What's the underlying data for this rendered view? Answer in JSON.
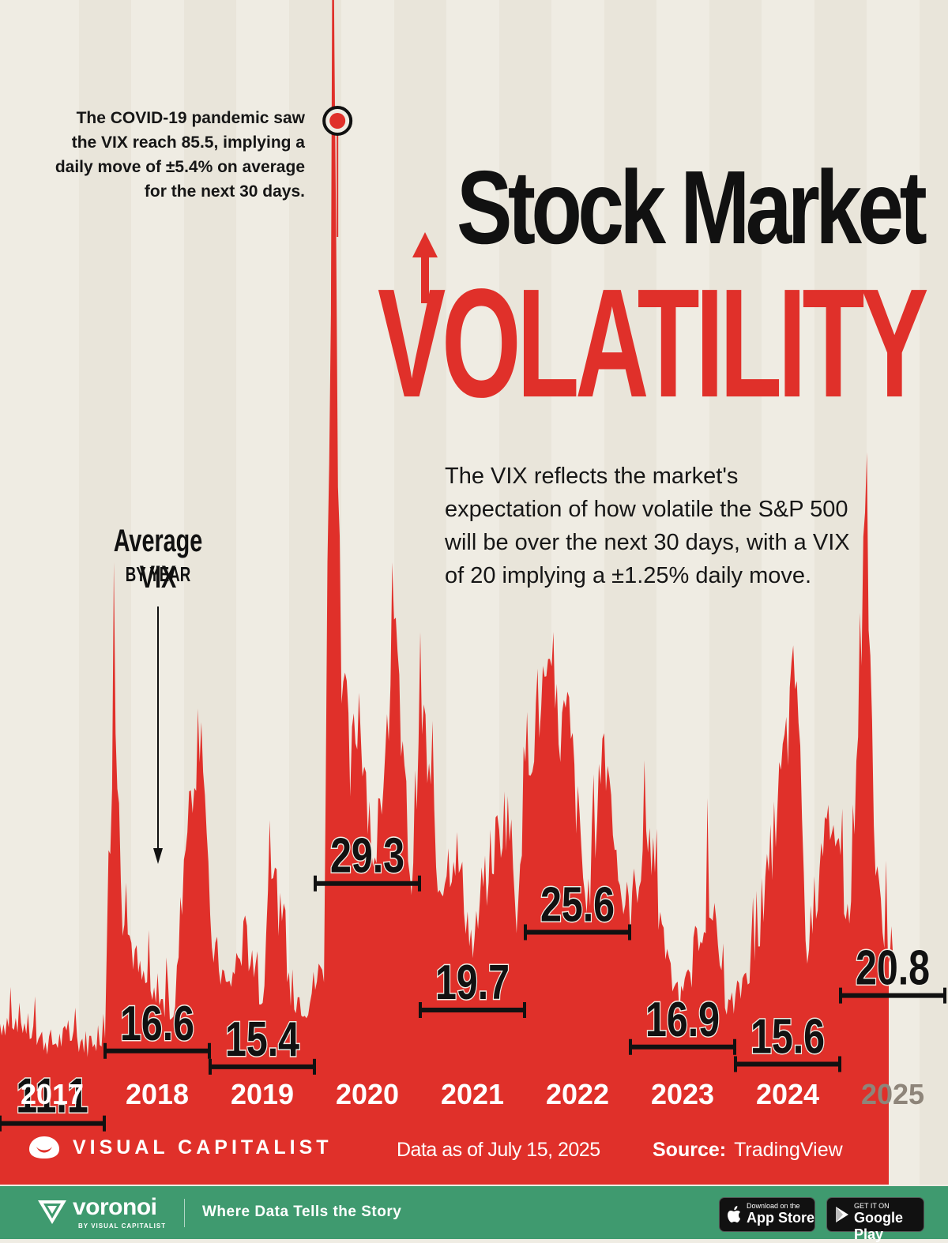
{
  "title": {
    "line1": "Stock Market",
    "line2": "VOLATILITY"
  },
  "annotation_covid": "The COVID-19 pandemic saw the VIX reach 85.5, implying a daily move of ±5.4% on average for the next 30 days.",
  "explanation": "The VIX reflects the market's expectation of how volatile the S&P 500 will be over the next 30 days, with a VIX of 20 implying a ±1.25% daily move.",
  "legend": {
    "title": "Average VIX",
    "subtitle": "BY YEAR"
  },
  "footer": {
    "brand": "VISUAL CAPITALIST",
    "date": "Data as of July 15, 2025",
    "source_label": "Source:",
    "source_value": "TradingView"
  },
  "bottom_bar": {
    "app_name": "voronoi",
    "app_by": "BY VISUAL CAPITALIST",
    "tagline": "Where Data Tells the Story",
    "appstore_small": "Download on the",
    "appstore_big": "App Store",
    "googleplay_small": "GET IT ON",
    "googleplay_big": "Google Play"
  },
  "colors": {
    "background": "#efece3",
    "area": "#e0302a",
    "text": "#111111",
    "footer_bar": "#3f9a6f"
  },
  "chart_data": {
    "type": "area",
    "title": "Stock Market Volatility",
    "xlabel": "",
    "ylabel": "",
    "ylim": [
      0,
      90
    ],
    "categories": [
      "2017",
      "2018",
      "2019",
      "2020",
      "2021",
      "2022",
      "2023",
      "2024",
      "2025"
    ],
    "series": [
      {
        "name": "Average VIX",
        "values": [
          11.1,
          16.6,
          15.4,
          29.3,
          19.7,
          25.6,
          16.9,
          15.6,
          20.8
        ],
        "labels": [
          "11.1",
          "16.6",
          "15.4",
          "29.3",
          "19.7",
          "25.6",
          "16.9",
          "15.6",
          "20.8"
        ]
      }
    ],
    "approx_daily_vix": [
      [
        "2017-01",
        11.5
      ],
      [
        "2017-03",
        12.0
      ],
      [
        "2017-05",
        10.5
      ],
      [
        "2017-07",
        10.0
      ],
      [
        "2017-09",
        10.5
      ],
      [
        "2017-11",
        10.0
      ],
      [
        "2018-01",
        11.0
      ],
      [
        "2018-02",
        37.3
      ],
      [
        "2018-03",
        20.0
      ],
      [
        "2018-05",
        15.0
      ],
      [
        "2018-07",
        13.0
      ],
      [
        "2018-09",
        12.5
      ],
      [
        "2018-10",
        24.0
      ],
      [
        "2018-12",
        36.1
      ],
      [
        "2019-01",
        18.0
      ],
      [
        "2019-03",
        14.0
      ],
      [
        "2019-05",
        18.0
      ],
      [
        "2019-07",
        13.0
      ],
      [
        "2019-08",
        24.6
      ],
      [
        "2019-10",
        14.0
      ],
      [
        "2019-12",
        13.0
      ],
      [
        "2020-02",
        16.0
      ],
      [
        "2020-03",
        85.5
      ],
      [
        "2020-04",
        40.0
      ],
      [
        "2020-05",
        30.0
      ],
      [
        "2020-06",
        36.0
      ],
      [
        "2020-08",
        22.0
      ],
      [
        "2020-09",
        33.0
      ],
      [
        "2020-10",
        40.3
      ],
      [
        "2020-12",
        22.0
      ],
      [
        "2021-01",
        37.2
      ],
      [
        "2021-03",
        22.0
      ],
      [
        "2021-05",
        25.0
      ],
      [
        "2021-07",
        17.0
      ],
      [
        "2021-09",
        24.0
      ],
      [
        "2021-11",
        28.0
      ],
      [
        "2021-12",
        20.0
      ],
      [
        "2022-01",
        32.0
      ],
      [
        "2022-03",
        36.5
      ],
      [
        "2022-05",
        34.0
      ],
      [
        "2022-06",
        34.0
      ],
      [
        "2022-08",
        20.0
      ],
      [
        "2022-10",
        33.6
      ],
      [
        "2022-12",
        21.0
      ],
      [
        "2023-01",
        20.0
      ],
      [
        "2023-03",
        26.5
      ],
      [
        "2023-05",
        16.0
      ],
      [
        "2023-07",
        13.0
      ],
      [
        "2023-10",
        21.7
      ],
      [
        "2023-12",
        12.5
      ],
      [
        "2024-01",
        13.0
      ],
      [
        "2024-04",
        19.2
      ],
      [
        "2024-08",
        38.6
      ],
      [
        "2024-09",
        17.0
      ],
      [
        "2024-12",
        27.6
      ],
      [
        "2025-02",
        19.0
      ],
      [
        "2025-04",
        52.3
      ],
      [
        "2025-05",
        22.0
      ],
      [
        "2025-07",
        16.5
      ]
    ]
  }
}
